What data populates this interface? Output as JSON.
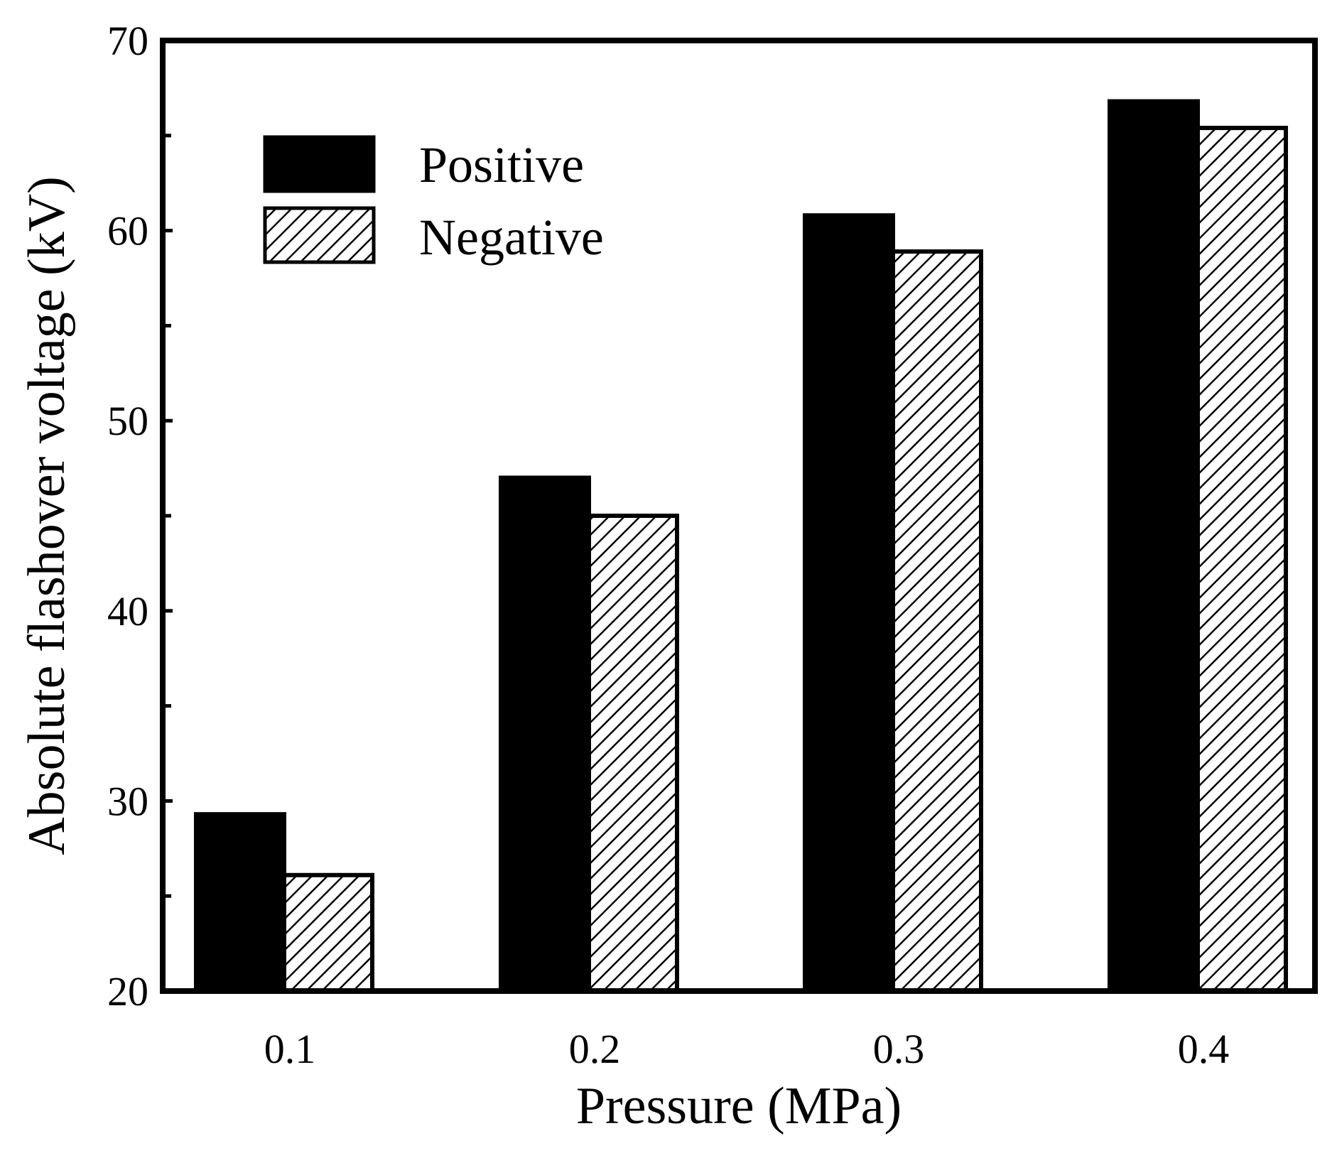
{
  "chart_data": {
    "type": "bar",
    "title": "",
    "xlabel": "Pressure (MPa)",
    "ylabel": "Absolute flashover voltage (kV)",
    "categories": [
      "0.1",
      "0.2",
      "0.3",
      "0.4"
    ],
    "series": [
      {
        "name": "Positive",
        "fill": "solid",
        "color": "#000000",
        "values": [
          29.3,
          47.0,
          60.8,
          66.8
        ]
      },
      {
        "name": "Negative",
        "fill": "hatched",
        "color": "#000000",
        "values": [
          26.1,
          45.0,
          58.9,
          65.4
        ]
      }
    ],
    "ylim": [
      20,
      70
    ],
    "yticks": [
      "20",
      "30",
      "40",
      "50",
      "60",
      "70"
    ],
    "ytick_values": [
      20,
      30,
      40,
      50,
      60,
      70
    ],
    "y_minor_tick_values": [
      25,
      35,
      45,
      55,
      65
    ],
    "grid": false,
    "legend_position": "top-left"
  }
}
